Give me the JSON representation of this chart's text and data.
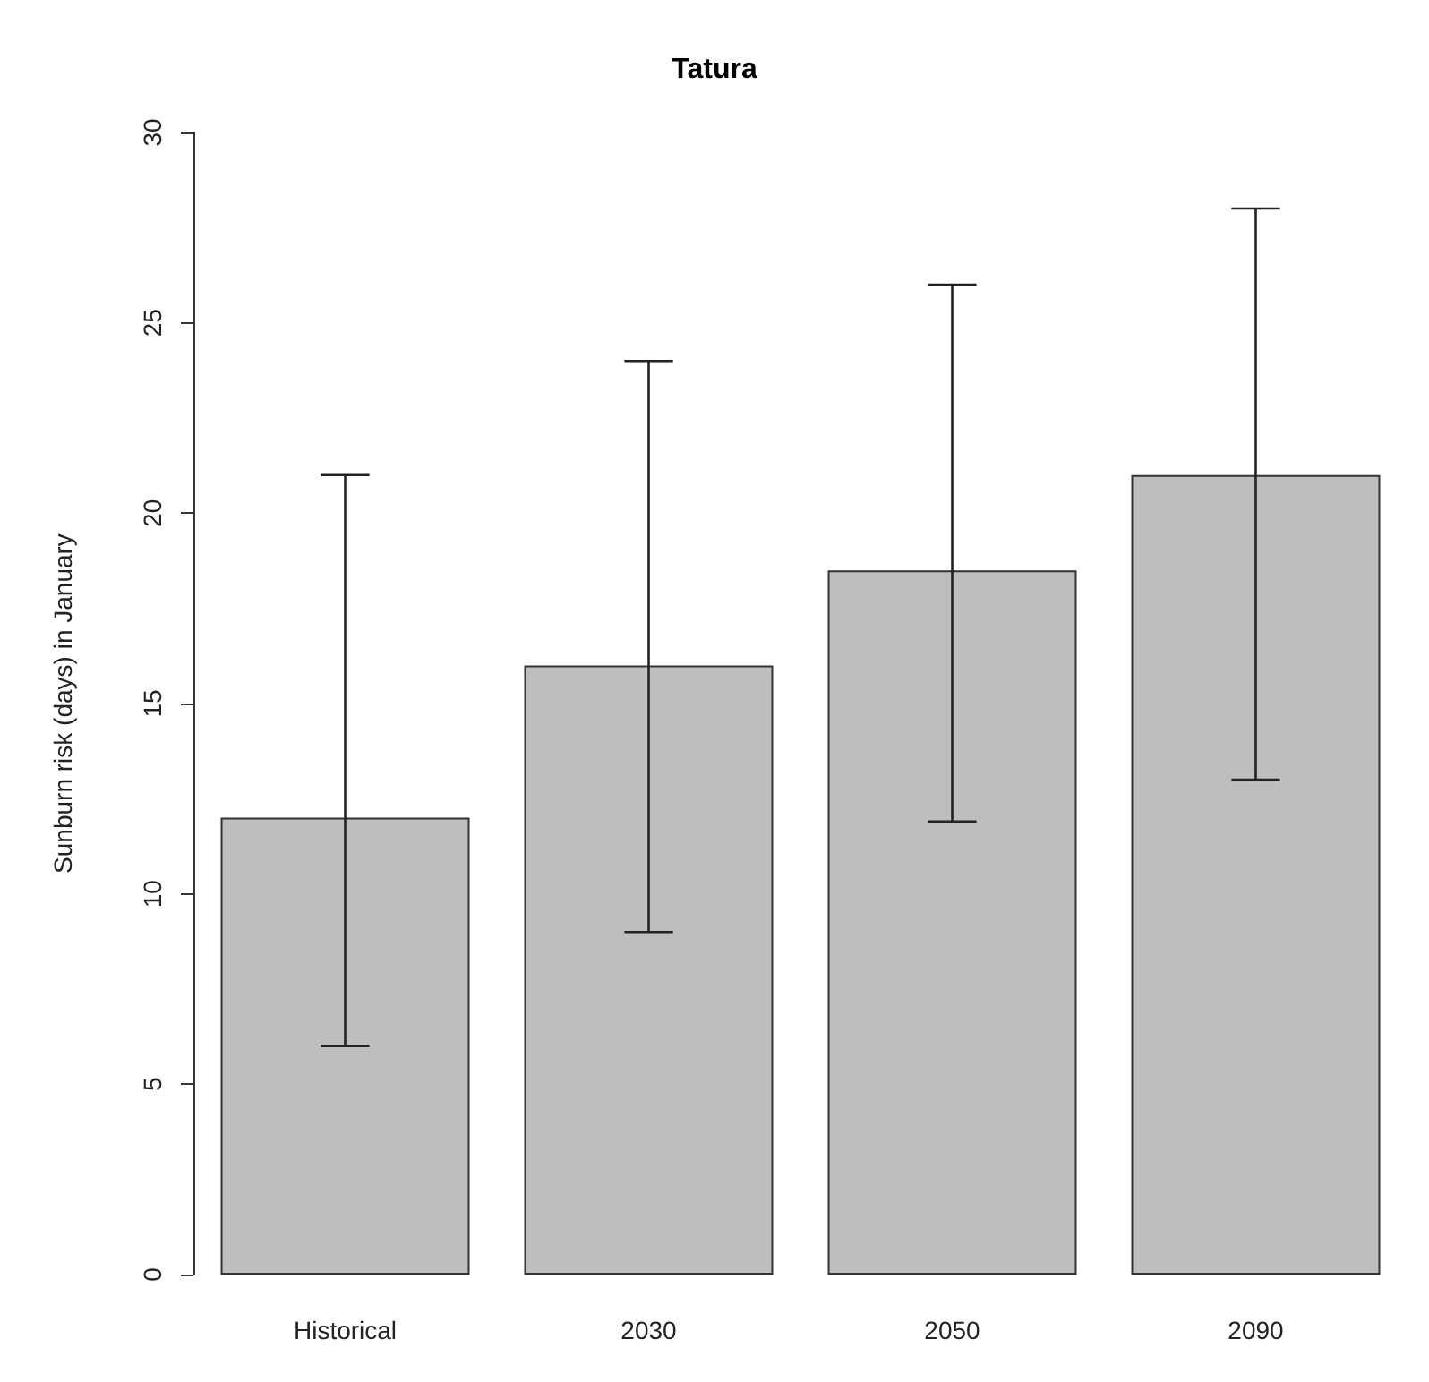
{
  "chart_data": {
    "type": "bar",
    "title": "Tatura",
    "ylabel": "Sunburn risk (days) in January",
    "categories": [
      "Historical",
      "2030",
      "2050",
      "2090"
    ],
    "values": [
      12,
      16,
      18.5,
      21
    ],
    "errors": [
      [
        6,
        21
      ],
      [
        9,
        24
      ],
      [
        11.9,
        26
      ],
      [
        13,
        28
      ]
    ],
    "color": "#bebebe",
    "ylim": [
      0,
      30
    ],
    "yticks": [
      0,
      5,
      10,
      15,
      20,
      25,
      30
    ],
    "grid": false
  }
}
